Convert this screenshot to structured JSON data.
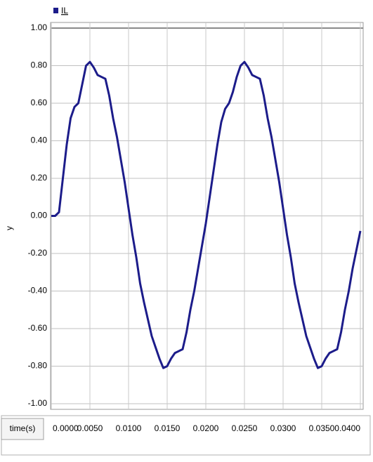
{
  "chart_data": {
    "type": "line",
    "ylabel": "y",
    "xlabel": "time(s)",
    "x": [
      0,
      0.0005,
      0.001,
      0.0015,
      0.002,
      0.0025,
      0.003,
      0.0035,
      0.004,
      0.0045,
      0.005,
      0.0055,
      0.006,
      0.0065,
      0.007,
      0.0075,
      0.008,
      0.0085,
      0.009,
      0.0095,
      0.01,
      0.0105,
      0.011,
      0.0115,
      0.012,
      0.0125,
      0.013,
      0.0135,
      0.014,
      0.0145,
      0.015,
      0.0155,
      0.016,
      0.0165,
      0.017,
      0.0175,
      0.018,
      0.0185,
      0.019,
      0.0195,
      0.02,
      0.0205,
      0.021,
      0.0215,
      0.022,
      0.0225,
      0.023,
      0.0235,
      0.024,
      0.0245,
      0.025,
      0.0255,
      0.026,
      0.0265,
      0.027,
      0.0275,
      0.028,
      0.0285,
      0.029,
      0.0295,
      0.03,
      0.0305,
      0.031,
      0.0315,
      0.032,
      0.0325,
      0.033,
      0.0335,
      0.034,
      0.0345,
      0.035,
      0.0355,
      0.036,
      0.0365,
      0.037,
      0.0375,
      0.038,
      0.0385,
      0.039,
      0.0395,
      0.04
    ],
    "series": [
      {
        "name": "IL",
        "color": "#1c1c8a",
        "values": [
          0,
          0,
          0.02,
          0.2,
          0.38,
          0.52,
          0.58,
          0.6,
          0.7,
          0.8,
          0.82,
          0.79,
          0.75,
          0.74,
          0.73,
          0.64,
          0.52,
          0.42,
          0.3,
          0.18,
          0.04,
          -0.1,
          -0.22,
          -0.36,
          -0.46,
          -0.55,
          -0.64,
          -0.7,
          -0.76,
          -0.81,
          -0.8,
          -0.76,
          -0.73,
          -0.72,
          -0.71,
          -0.62,
          -0.5,
          -0.4,
          -0.28,
          -0.16,
          -0.04,
          0.1,
          0.24,
          0.38,
          0.5,
          0.57,
          0.6,
          0.66,
          0.74,
          0.8,
          0.82,
          0.79,
          0.75,
          0.74,
          0.73,
          0.64,
          0.52,
          0.42,
          0.3,
          0.18,
          0.04,
          -0.1,
          -0.22,
          -0.36,
          -0.46,
          -0.55,
          -0.64,
          -0.7,
          -0.76,
          -0.81,
          -0.8,
          -0.76,
          -0.73,
          -0.72,
          -0.71,
          -0.62,
          -0.5,
          -0.4,
          -0.28,
          -0.18,
          -0.08
        ]
      }
    ],
    "xlim": [
      0,
      0.04
    ],
    "ylim": [
      -1.03,
      1.03
    ],
    "xticks": [
      {
        "value": 0,
        "label": "0.0000"
      },
      {
        "value": 0.005,
        "label": "0.0050"
      },
      {
        "value": 0.01,
        "label": "0.0100"
      },
      {
        "value": 0.015,
        "label": "0.0150"
      },
      {
        "value": 0.02,
        "label": "0.0200"
      },
      {
        "value": 0.025,
        "label": "0.0250"
      },
      {
        "value": 0.03,
        "label": "0.0300"
      },
      {
        "value": 0.035,
        "label": "0.0350"
      },
      {
        "value": 0.04,
        "label": "0.0400"
      }
    ],
    "yticks": [
      {
        "value": 1,
        "label": "1.00"
      },
      {
        "value": 0.8,
        "label": "0.80"
      },
      {
        "value": 0.6,
        "label": "0.60"
      },
      {
        "value": 0.4,
        "label": "0.40"
      },
      {
        "value": 0.2,
        "label": "0.20"
      },
      {
        "value": 0,
        "label": "0.00"
      },
      {
        "value": -0.2,
        "label": "-0.20"
      },
      {
        "value": -0.4,
        "label": "-0.40"
      },
      {
        "value": -0.6,
        "label": "-0.60"
      },
      {
        "value": -0.8,
        "label": "-0.80"
      },
      {
        "value": -1,
        "label": "-1.00"
      }
    ],
    "grid": true
  }
}
